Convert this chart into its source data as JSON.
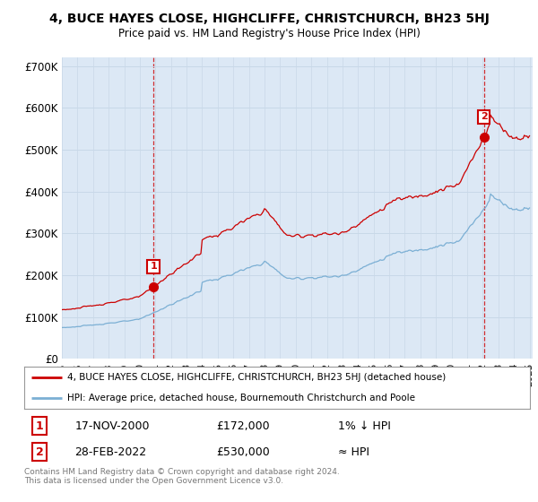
{
  "title": "4, BUCE HAYES CLOSE, HIGHCLIFFE, CHRISTCHURCH, BH23 5HJ",
  "subtitle": "Price paid vs. HM Land Registry's House Price Index (HPI)",
  "ylim": [
    0,
    720000
  ],
  "yticks": [
    0,
    100000,
    200000,
    300000,
    400000,
    500000,
    600000,
    700000
  ],
  "ytick_labels": [
    "£0",
    "£100K",
    "£200K",
    "£300K",
    "£400K",
    "£500K",
    "£600K",
    "£700K"
  ],
  "hpi_color": "#7bafd4",
  "price_color": "#cc0000",
  "chart_bg": "#dce8f5",
  "point1_year": 2000.875,
  "point1_price": 172000,
  "point1_date": "17-NOV-2000",
  "point1_label": "1% ↓ HPI",
  "point2_year": 2022.083,
  "point2_price": 530000,
  "point2_date": "28-FEB-2022",
  "point2_label": "≈ HPI",
  "legend_line1": "4, BUCE HAYES CLOSE, HIGHCLIFFE, CHRISTCHURCH, BH23 5HJ (detached house)",
  "legend_line2": "HPI: Average price, detached house, Bournemouth Christchurch and Poole",
  "footnote": "Contains HM Land Registry data © Crown copyright and database right 2024.\nThis data is licensed under the Open Government Licence v3.0.",
  "background_color": "#ffffff",
  "grid_color": "#c8d8e8",
  "xlim_start": 1995.0,
  "xlim_end": 2025.2
}
